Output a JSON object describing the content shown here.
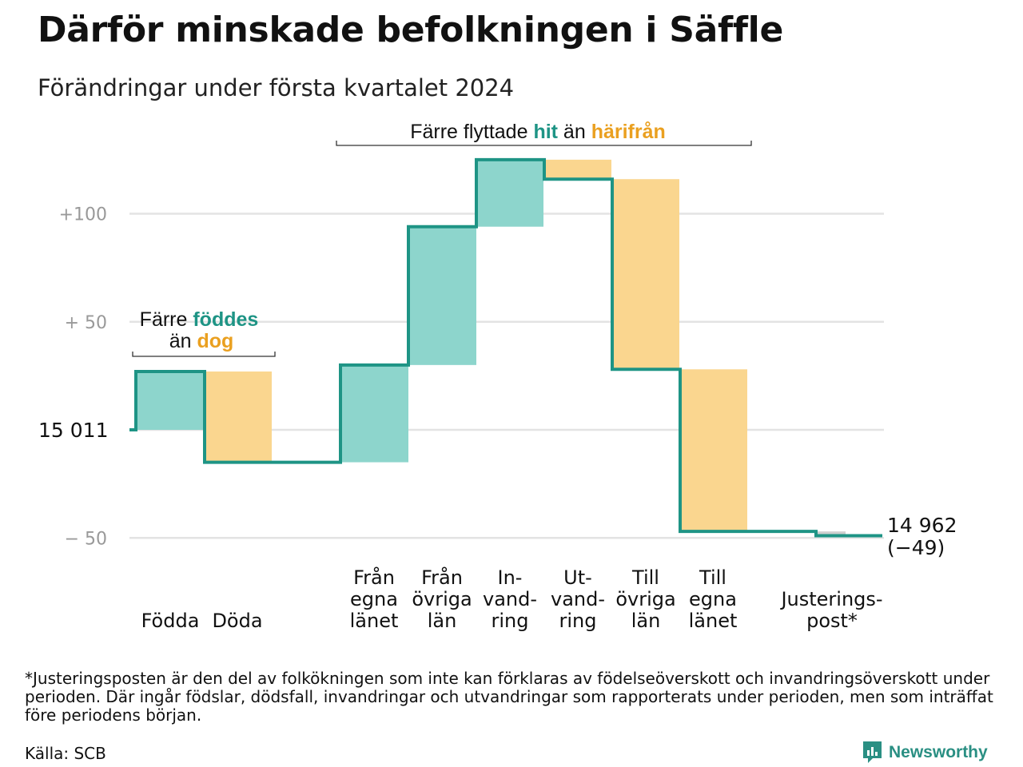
{
  "header": {
    "title": "Därför minskade befolkningen i Säffle",
    "subtitle": "Förändringar under första kvartalet 2024"
  },
  "colors": {
    "increase": "#8dd5cc",
    "decrease": "#fad68f",
    "adjustment": "#cfcfcf",
    "line": "#1e9485",
    "grid": "#e3e3e3",
    "teal_text": "#1e9485",
    "orange_text": "#eaa020",
    "axis_text": "#999999"
  },
  "chart_data": {
    "type": "waterfall",
    "start": {
      "label": "15  011",
      "value": 15011
    },
    "end": {
      "label": "14 962",
      "change_label": "(−49)",
      "value": 14962
    },
    "yticks": [
      {
        "offset": 100,
        "label": "+100"
      },
      {
        "offset": 50,
        "label": "+  50"
      },
      {
        "offset": -50,
        "label": "−  50"
      }
    ],
    "steps": [
      {
        "category": "Födda",
        "label": [
          "Födda"
        ],
        "change": 27
      },
      {
        "category": "Döda",
        "label": [
          "Döda"
        ],
        "change": -42
      },
      {
        "category": "Från egna länet",
        "label": [
          "Från",
          "egna",
          "länet"
        ],
        "change": 45
      },
      {
        "category": "Från övriga län",
        "label": [
          "Från",
          "övriga",
          "län"
        ],
        "change": 64
      },
      {
        "category": "Invandring",
        "label": [
          "In-",
          "vand-",
          "ring"
        ],
        "change": 31
      },
      {
        "category": "Utvandring",
        "label": [
          "Ut-",
          "vand-",
          "ring"
        ],
        "change": -9
      },
      {
        "category": "Till övriga län",
        "label": [
          "Till",
          "övriga",
          "län"
        ],
        "change": -88
      },
      {
        "category": "Till egna länet",
        "label": [
          "Till",
          "egna",
          "länet"
        ],
        "change": -75
      },
      {
        "category": "Justeringspost*",
        "label": [
          "Justerings-",
          "post*"
        ],
        "change": -2
      }
    ],
    "annotations": {
      "births_deaths": {
        "line1_prefix": "Färre ",
        "line1_highlight": "föddes",
        "line2_prefix": "än ",
        "line2_highlight": "dog"
      },
      "migration": {
        "prefix": "Färre flyttade ",
        "highlight1": "hit",
        "middle": " än ",
        "highlight2": "härifrån"
      }
    }
  },
  "footnote": "*Justeringsposten är den del av folkökningen som inte kan förklaras av födelseöverskott och invandringsöverskott under perioden. Där ingår födslar, dödsfall, invandringar och utvandringar som rapporterats under perioden, men som inträffat före periodens början.",
  "source": "Källa: SCB",
  "brand": {
    "name": "Newsworthy",
    "icon": "newsworthy-logo-icon"
  }
}
